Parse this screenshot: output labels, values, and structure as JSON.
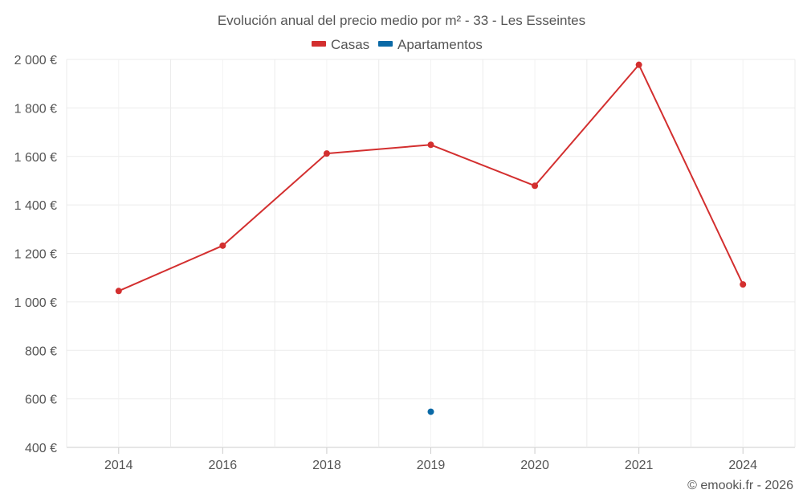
{
  "chart_data": {
    "type": "line",
    "title": "Evolución anual del precio medio por m² - 33 - Les Esseintes",
    "categories": [
      "2014",
      "2016",
      "2018",
      "2019",
      "2020",
      "2021",
      "2024"
    ],
    "series": [
      {
        "name": "Casas",
        "color": "#d32f2f",
        "values": [
          1045,
          1232,
          1612,
          1648,
          1479,
          1978,
          1072
        ]
      },
      {
        "name": "Apartamentos",
        "color": "#0a69a6",
        "values": [
          null,
          null,
          null,
          547,
          null,
          null,
          null
        ]
      }
    ],
    "y_ticks": [
      "2 000 €",
      "1 800 €",
      "1 600 €",
      "1 400 €",
      "1 200 €",
      "1 000 €",
      "800 €",
      "600 €",
      "400 €"
    ],
    "ylim": [
      400,
      2000
    ],
    "xlabel": "",
    "ylabel": "",
    "grid": true,
    "legend": "top-center"
  },
  "credit": "© emooki.fr - 2026"
}
